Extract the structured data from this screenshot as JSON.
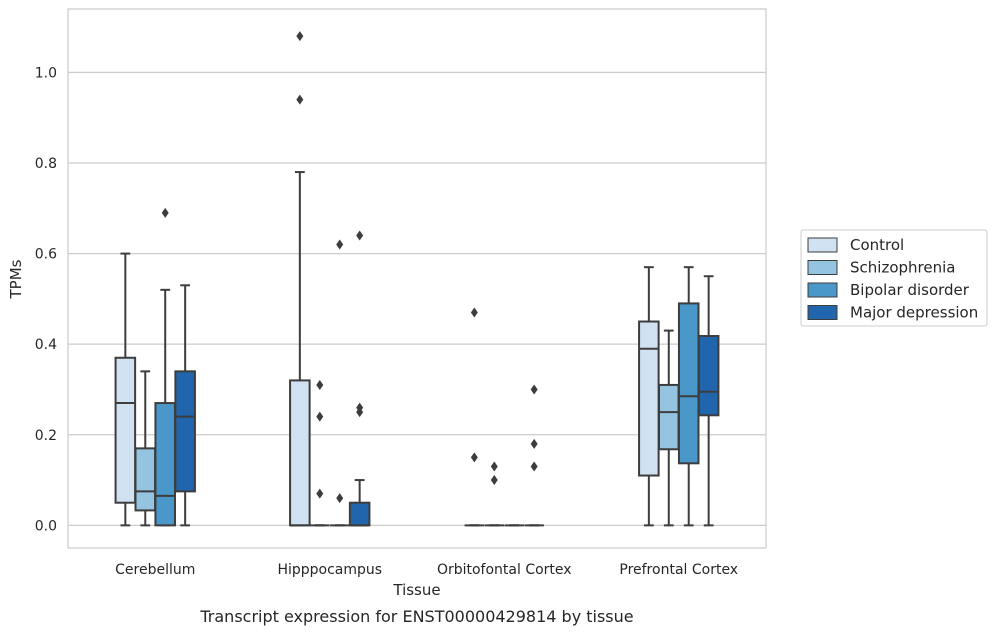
{
  "caption": "Transcript expression for ENST00000429814 by tissue",
  "chart_data": {
    "type": "boxplot",
    "title": "",
    "xlabel": "Tissue",
    "ylabel": "TPMs",
    "ylim": [
      -0.05,
      1.14
    ],
    "yticks": [
      "0.0",
      "0.2",
      "0.4",
      "0.6",
      "0.8",
      "1.0"
    ],
    "grid": "horizontal",
    "legend_position": "right",
    "categories": [
      "Cerebellum",
      "Hipppocampus",
      "Orbitofontal Cortex",
      "Prefrontal Cortex"
    ],
    "series": [
      {
        "name": "Control",
        "color": "#d0e1f2",
        "boxes": [
          {
            "whislo": 0.0,
            "q1": 0.05,
            "med": 0.27,
            "q3": 0.37,
            "whishi": 0.6,
            "fliers": []
          },
          {
            "whislo": 0.0,
            "q1": 0.0,
            "med": 0.0,
            "q3": 0.32,
            "whishi": 0.78,
            "fliers": [
              0.94,
              1.08
            ]
          },
          {
            "whislo": 0.0,
            "q1": 0.0,
            "med": 0.0,
            "q3": 0.0,
            "whishi": 0.0,
            "fliers": [
              0.15,
              0.47
            ]
          },
          {
            "whislo": 0.0,
            "q1": 0.11,
            "med": 0.39,
            "q3": 0.45,
            "whishi": 0.57,
            "fliers": []
          }
        ]
      },
      {
        "name": "Schizophrenia",
        "color": "#94c4df",
        "boxes": [
          {
            "whislo": 0.0,
            "q1": 0.033,
            "med": 0.075,
            "q3": 0.17,
            "whishi": 0.34,
            "fliers": []
          },
          {
            "whislo": 0.0,
            "q1": 0.0,
            "med": 0.0,
            "q3": 0.0,
            "whishi": 0.0,
            "fliers": [
              0.07,
              0.24,
              0.31
            ]
          },
          {
            "whislo": 0.0,
            "q1": 0.0,
            "med": 0.0,
            "q3": 0.0,
            "whishi": 0.0,
            "fliers": [
              0.1,
              0.13
            ]
          },
          {
            "whislo": 0.0,
            "q1": 0.168,
            "med": 0.25,
            "q3": 0.31,
            "whishi": 0.43,
            "fliers": []
          }
        ]
      },
      {
        "name": "Bipolar disorder",
        "color": "#4a98c9",
        "boxes": [
          {
            "whislo": 0.0,
            "q1": 0.0,
            "med": 0.065,
            "q3": 0.27,
            "whishi": 0.52,
            "fliers": [
              0.69
            ]
          },
          {
            "whislo": 0.0,
            "q1": 0.0,
            "med": 0.0,
            "q3": 0.0,
            "whishi": 0.0,
            "fliers": [
              0.06,
              0.62
            ]
          },
          {
            "whislo": 0.0,
            "q1": 0.0,
            "med": 0.0,
            "q3": 0.0,
            "whishi": 0.0,
            "fliers": []
          },
          {
            "whislo": 0.0,
            "q1": 0.137,
            "med": 0.285,
            "q3": 0.49,
            "whishi": 0.57,
            "fliers": []
          }
        ]
      },
      {
        "name": "Major depression",
        "color": "#2166ac",
        "boxes": [
          {
            "whislo": 0.0,
            "q1": 0.075,
            "med": 0.24,
            "q3": 0.34,
            "whishi": 0.53,
            "fliers": []
          },
          {
            "whislo": 0.0,
            "q1": 0.0,
            "med": 0.0,
            "q3": 0.05,
            "whishi": 0.1,
            "fliers": [
              0.25,
              0.26,
              0.64
            ]
          },
          {
            "whislo": 0.0,
            "q1": 0.0,
            "med": 0.0,
            "q3": 0.0,
            "whishi": 0.0,
            "fliers": [
              0.13,
              0.18,
              0.3
            ]
          },
          {
            "whislo": 0.0,
            "q1": 0.243,
            "med": 0.295,
            "q3": 0.418,
            "whishi": 0.55,
            "fliers": []
          }
        ]
      }
    ]
  }
}
